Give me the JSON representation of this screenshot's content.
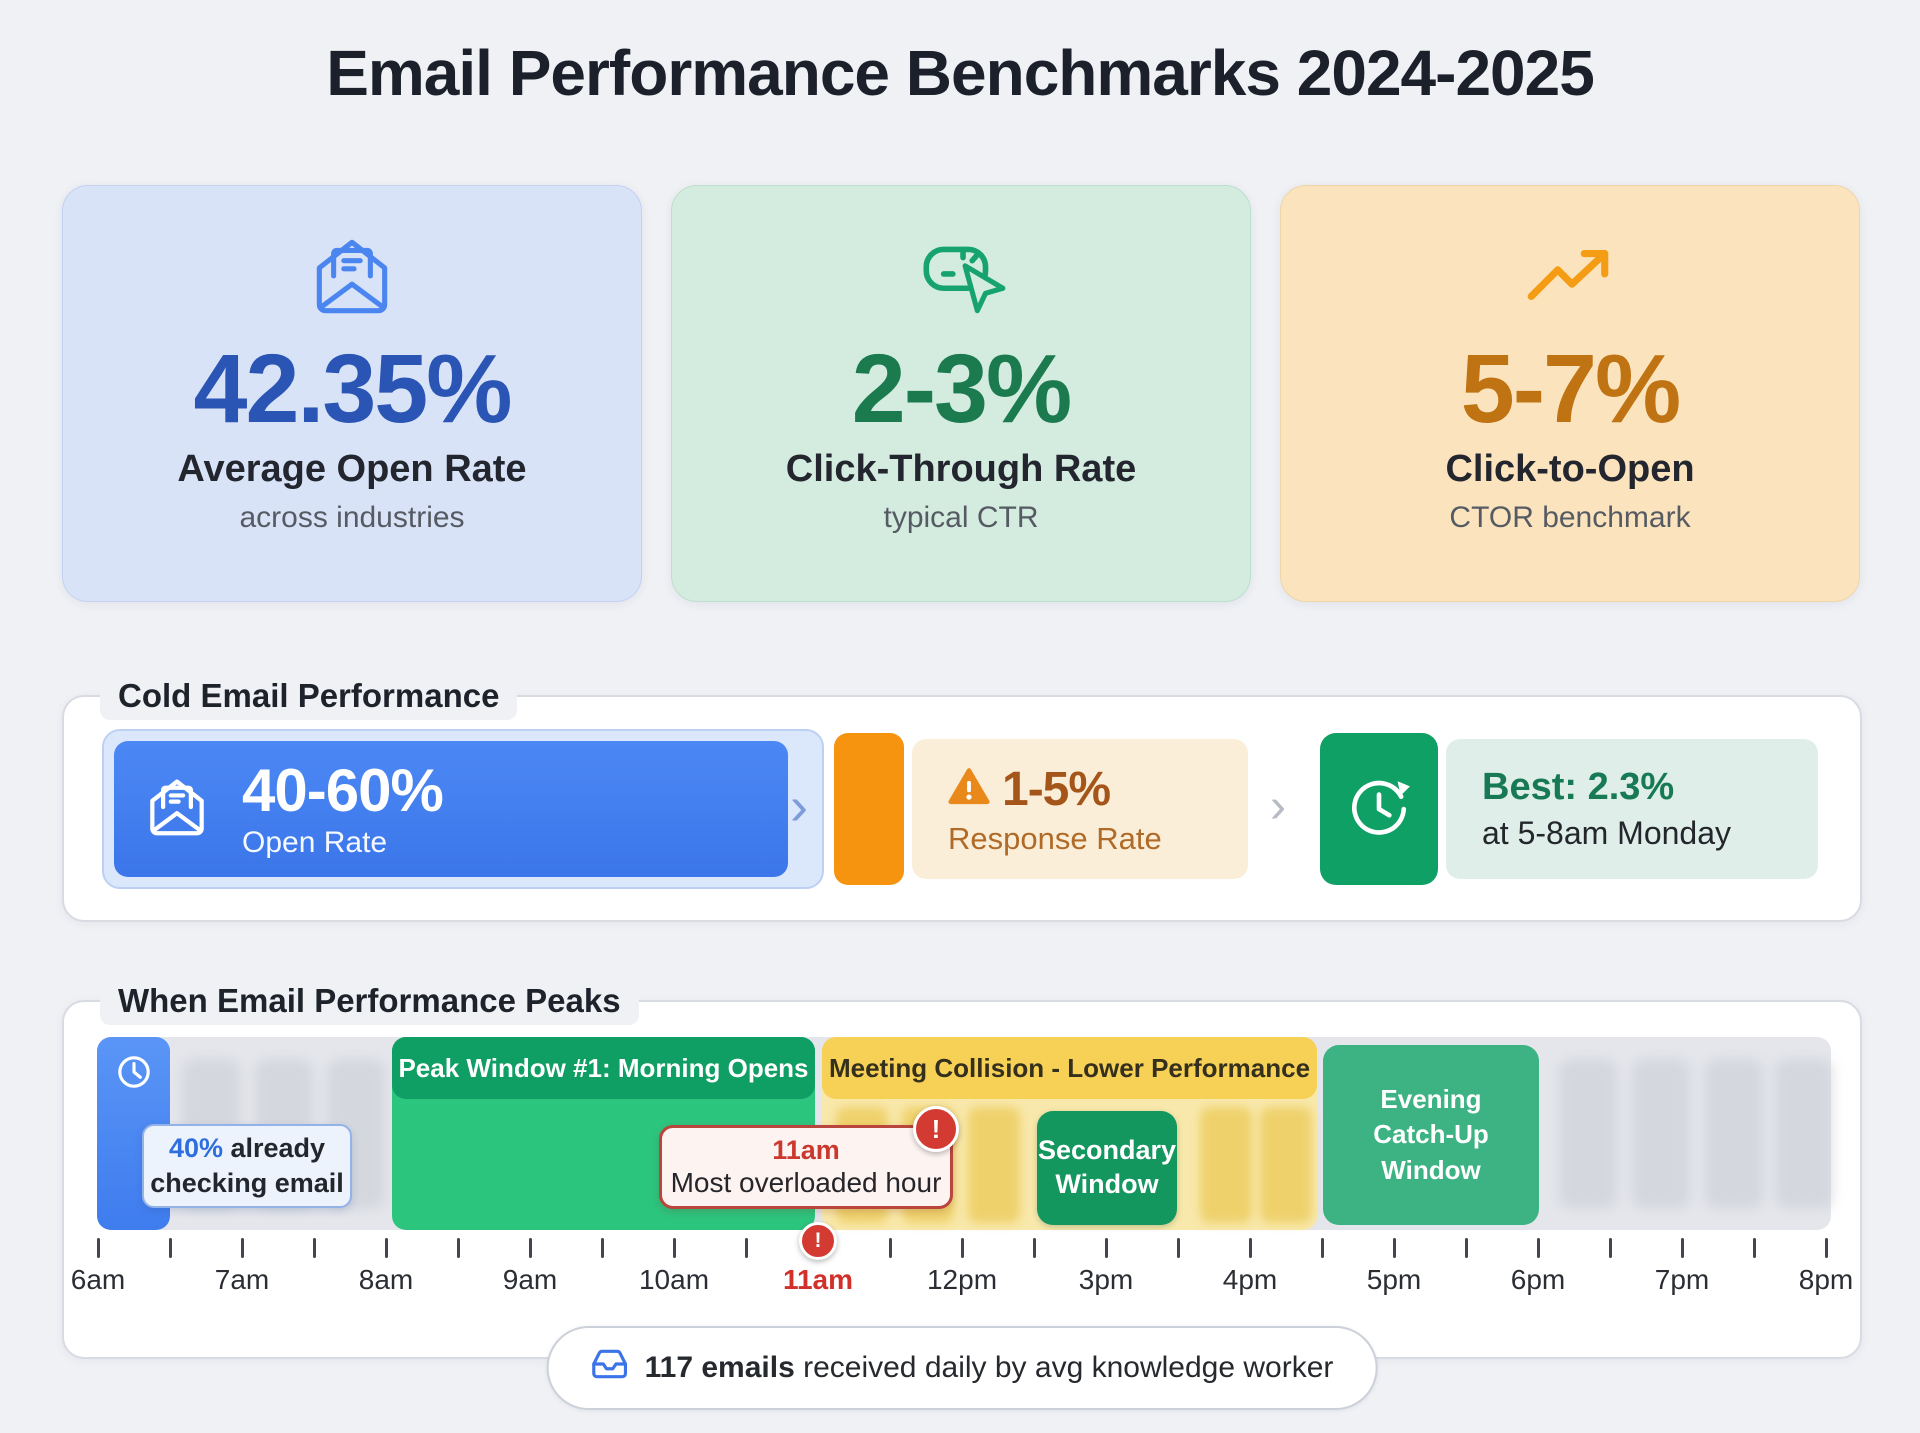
{
  "page": {
    "title": "Email Performance Benchmarks 2024-2025"
  },
  "colors": {
    "accent_blue": "#3b76ea",
    "accent_green": "#0f9e63",
    "accent_orange": "#f6930f",
    "accent_yellow": "#f7d155",
    "alert_red": "#d33a31",
    "card_blue_bg": "#d9e3f8",
    "card_green_bg": "#d3ecdf",
    "card_orange_bg": "#fbe4bd"
  },
  "stat_cards": [
    {
      "icon": "mail-open-icon",
      "value": "42.35%",
      "label": "Average Open Rate",
      "sublabel": "across industries"
    },
    {
      "icon": "cursor-click-icon",
      "value": "2-3%",
      "label": "Click-Through Rate",
      "sublabel": "typical CTR"
    },
    {
      "icon": "trending-up-icon",
      "value": "5-7%",
      "label": "Click-to-Open",
      "sublabel": "CTOR benchmark"
    }
  ],
  "cold_email": {
    "section_title": "Cold Email Performance",
    "chevron": "›",
    "open_rate": {
      "value": "40-60%",
      "label": "Open Rate"
    },
    "response_rate": {
      "value": "1-5%",
      "label": "Response Rate"
    },
    "best_time": {
      "value": "Best: 2.3%",
      "label": "at 5-8am Monday"
    }
  },
  "peaks": {
    "section_title": "When Email Performance Peaks",
    "checking_callout": {
      "highlight": "40%",
      "line1_rest": " already",
      "line2": "checking email"
    },
    "peak_window_label": "Peak Window #1: Morning Opens",
    "collision_label": "Meeting Collision - Lower Performance",
    "overload_callout": {
      "time": "11am",
      "label": "Most overloaded hour",
      "badge": "!"
    },
    "secondary_window": {
      "line1": "Secondary",
      "line2": "Window"
    },
    "evening_window": {
      "line1": "Evening",
      "line2": "Catch-Up",
      "line3": "Window"
    },
    "timeline_labels": [
      "6am",
      "7am",
      "8am",
      "9am",
      "10am",
      "11am",
      "12pm",
      "3pm",
      "4pm",
      "5pm",
      "6pm",
      "7pm",
      "8pm"
    ],
    "footer": {
      "bold": "117 emails",
      "rest": " received daily by avg knowledge worker"
    }
  },
  "chart_data": {
    "type": "table",
    "title": "When Email Performance Peaks",
    "x_axis_labels": [
      "6am",
      "7am",
      "8am",
      "9am",
      "10am",
      "11am",
      "12pm",
      "3pm",
      "4pm",
      "5pm",
      "6pm",
      "7pm",
      "8pm"
    ],
    "rows": [
      {
        "label": "40% already checking email",
        "at": "6am"
      },
      {
        "label": "Peak Window #1: Morning Opens",
        "start": "8am",
        "end": "11am"
      },
      {
        "label": "11am - Most overloaded hour",
        "at": "11am"
      },
      {
        "label": "Meeting Collision - Lower Performance",
        "start": "11am",
        "end": "4pm (approx)"
      },
      {
        "label": "Secondary Window",
        "start": "12pm (approx)",
        "end": "3pm (approx)"
      },
      {
        "label": "Evening Catch-Up Window",
        "start": "4pm (approx)",
        "end": "6pm"
      },
      {
        "label": "117 emails received daily by avg knowledge worker"
      }
    ],
    "benchmarks": [
      {
        "metric": "Average Open Rate",
        "value": "42.35%",
        "note": "across industries"
      },
      {
        "metric": "Click-Through Rate",
        "value": "2-3%",
        "note": "typical CTR"
      },
      {
        "metric": "Click-to-Open",
        "value": "5-7%",
        "note": "CTOR benchmark"
      },
      {
        "metric": "Cold Email Open Rate",
        "value": "40-60%"
      },
      {
        "metric": "Cold Email Response Rate",
        "value": "1-5%"
      },
      {
        "metric": "Cold Email Best Response",
        "value": "2.3%",
        "note": "at 5-8am Monday"
      }
    ]
  }
}
